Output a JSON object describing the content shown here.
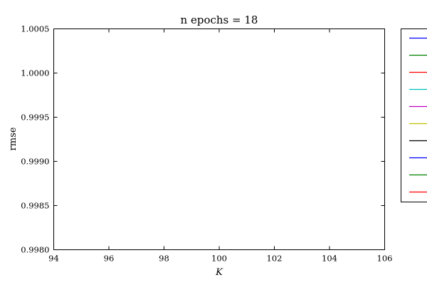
{
  "chart_data": {
    "type": "line",
    "title": "n epochs = 18",
    "xlabel": "K",
    "ylabel": "rmse",
    "xlim": [
      94,
      106
    ],
    "ylim": [
      0.998,
      1.0005
    ],
    "xticks": [
      "94",
      "96",
      "98",
      "100",
      "102",
      "104",
      "106"
    ],
    "yticks": [
      "0.9980",
      "0.9985",
      "0.9990",
      "0.9995",
      "1.0000",
      "1.0005"
    ],
    "grid": false,
    "legend_position": "right-outside",
    "series": [
      {
        "color": "#0000ff",
        "x": [],
        "y": []
      },
      {
        "color": "#008000",
        "x": [],
        "y": []
      },
      {
        "color": "#ff0000",
        "x": [],
        "y": []
      },
      {
        "color": "#00bfbf",
        "x": [],
        "y": []
      },
      {
        "color": "#bf00bf",
        "x": [],
        "y": []
      },
      {
        "color": "#bfbf00",
        "x": [],
        "y": []
      },
      {
        "color": "#000000",
        "x": [],
        "y": []
      },
      {
        "color": "#0000ff",
        "x": [],
        "y": []
      },
      {
        "color": "#008000",
        "x": [],
        "y": []
      },
      {
        "color": "#ff0000",
        "x": [],
        "y": []
      }
    ]
  }
}
